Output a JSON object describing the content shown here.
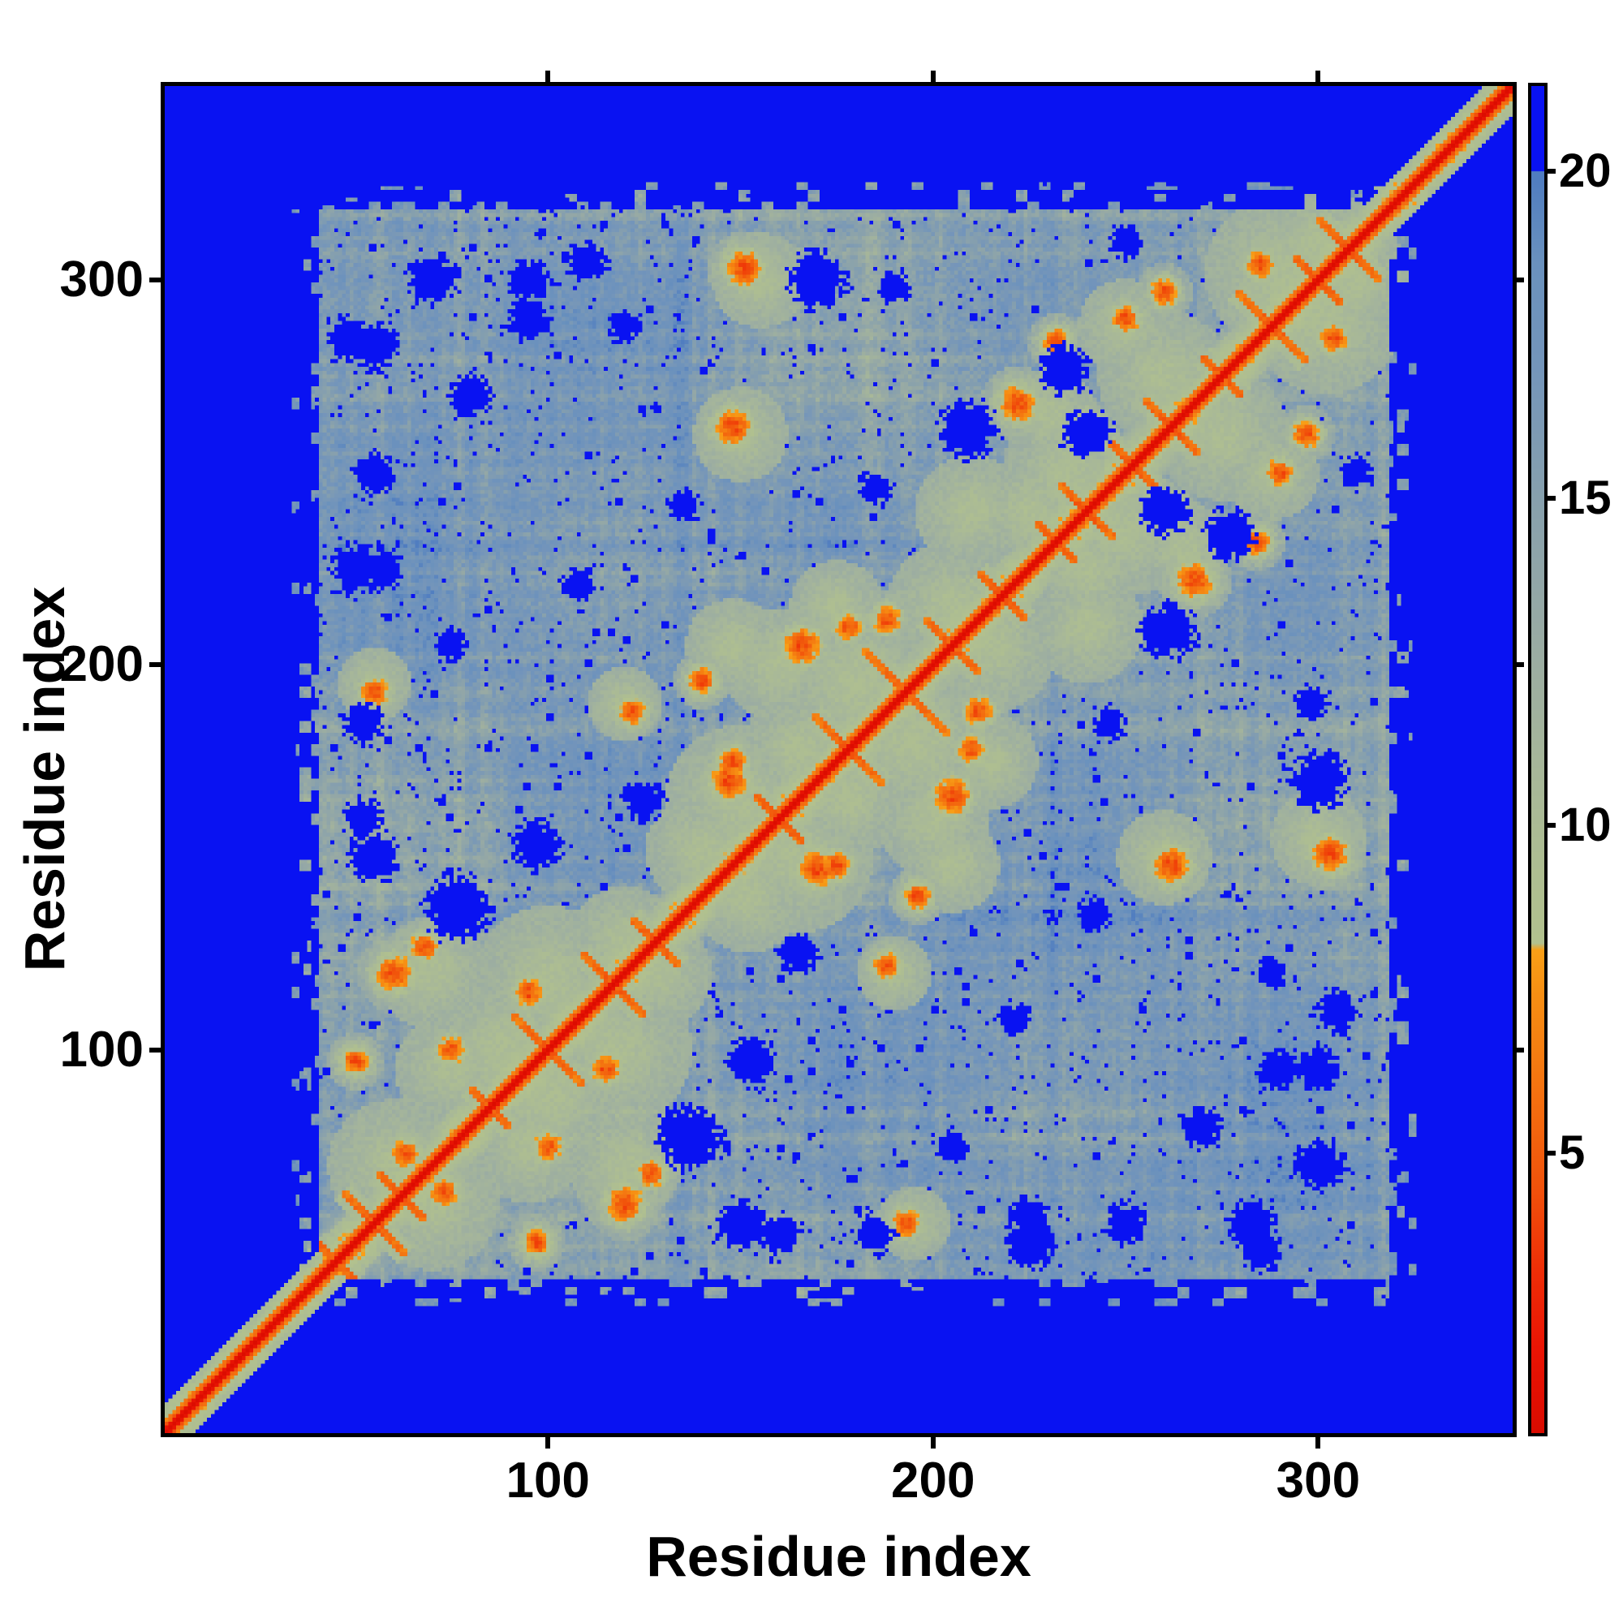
{
  "figure": {
    "x_axis_title": "Residue index",
    "y_axis_title": "Residue index"
  },
  "chart_data": {
    "type": "heatmap",
    "title": "",
    "xlabel": "Residue index",
    "ylabel": "Residue index",
    "x_ticks": [
      100,
      200,
      300
    ],
    "y_ticks": [
      100,
      200,
      300
    ],
    "x_tick_labels": [
      "100",
      "200",
      "300"
    ],
    "y_tick_labels": [
      "100",
      "200",
      "300"
    ],
    "axis_range": [
      1,
      350
    ],
    "n_residues": 350,
    "grid": false,
    "legend_position": "right-colorbar",
    "colorbar": {
      "ticks": [
        5,
        10,
        15,
        20
      ],
      "tick_labels": [
        "5",
        "10",
        "15",
        "20"
      ],
      "vmin": 0.72,
      "vmax": 21.3,
      "over_value_color": "#0912f2"
    },
    "colors": {
      "background_far": "#0912f2",
      "field_steel": "#6a91bd",
      "sage": "#adbd92",
      "orange": "#f68e13",
      "red_diagonal": "#ea1404",
      "frame": "#000000"
    },
    "colormap_stops": [
      [
        0.7,
        "#d90b00"
      ],
      [
        2.0,
        "#ea1404"
      ],
      [
        3.2,
        "#ee2e07"
      ],
      [
        4.5,
        "#f1530b"
      ],
      [
        6.0,
        "#f47310"
      ],
      [
        7.4,
        "#f68e13"
      ],
      [
        8.1,
        "#f89f17"
      ],
      [
        8.2,
        "#b2c18e"
      ],
      [
        9.5,
        "#adbd92"
      ],
      [
        11.0,
        "#a6b69a"
      ],
      [
        13.0,
        "#98aaa4"
      ],
      [
        15.0,
        "#87a0ad"
      ],
      [
        17.0,
        "#7495ba"
      ],
      [
        18.6,
        "#6a91bd"
      ],
      [
        19.9,
        "#507dc0"
      ]
    ],
    "blue_cutoff": 20.0,
    "pattern": {
      "base_distance": 17.4,
      "noise_amp": 2.6,
      "margin_low": 41,
      "margin_high": 318,
      "domains": [
        [
          42,
          130
        ],
        [
          130,
          230
        ],
        [
          230,
          318
        ]
      ],
      "hairpins": [
        [
          45,
          5
        ],
        [
          55,
          8
        ],
        [
          62,
          6
        ],
        [
          85,
          5
        ],
        [
          100,
          9
        ],
        [
          117,
          8
        ],
        [
          128,
          6
        ],
        [
          160,
          6
        ],
        [
          178,
          9
        ],
        [
          193,
          11
        ],
        [
          205,
          7
        ],
        [
          218,
          6
        ],
        [
          232,
          5
        ],
        [
          240,
          7
        ],
        [
          252,
          6
        ],
        [
          262,
          7
        ],
        [
          275,
          5
        ],
        [
          288,
          9
        ],
        [
          300,
          6
        ],
        [
          308,
          8
        ]
      ],
      "orange_clusters": [
        [
          60,
          120,
          4
        ],
        [
          68,
          127,
          3
        ],
        [
          50,
          97,
          3
        ],
        [
          73,
          63,
          3
        ],
        [
          100,
          75,
          3
        ],
        [
          115,
          95,
          3
        ],
        [
          55,
          193,
          3
        ],
        [
          122,
          188,
          3
        ],
        [
          140,
          196,
          3
        ],
        [
          147,
          170,
          4
        ],
        [
          166,
          205,
          4
        ],
        [
          188,
          212,
          3
        ],
        [
          222,
          268,
          4
        ],
        [
          232,
          284,
          3
        ],
        [
          240,
          262,
          3
        ],
        [
          250,
          290,
          3
        ],
        [
          262,
          148,
          4
        ],
        [
          303,
          151,
          4
        ],
        [
          297,
          260,
          3
        ],
        [
          285,
          304,
          3
        ],
        [
          210,
          178,
          3
        ],
        [
          175,
          148,
          3
        ]
      ],
      "sage_patches": [
        [
          100,
          118,
          8
        ],
        [
          60,
          70,
          7
        ],
        [
          88,
          100,
          8
        ],
        [
          120,
          128,
          6
        ],
        [
          150,
          165,
          8
        ],
        [
          180,
          195,
          9
        ],
        [
          205,
          215,
          7
        ],
        [
          235,
          250,
          7
        ],
        [
          260,
          275,
          7
        ],
        [
          290,
          302,
          8
        ],
        [
          225,
          240,
          6
        ],
        [
          165,
          178,
          6
        ],
        [
          140,
          152,
          6
        ],
        [
          310,
          300,
          6
        ],
        [
          70,
          120,
          6
        ],
        [
          95,
          75,
          6
        ],
        [
          250,
          288,
          5
        ],
        [
          230,
          265,
          5
        ],
        [
          148,
          205,
          5
        ],
        [
          175,
          215,
          5
        ],
        [
          260,
          150,
          5
        ],
        [
          300,
          155,
          5
        ],
        [
          55,
          195,
          4
        ],
        [
          120,
          190,
          4
        ],
        [
          200,
          160,
          6
        ],
        [
          240,
          210,
          6
        ]
      ],
      "blue_holes": [
        [
          77,
          137,
          8
        ],
        [
          97,
          153,
          6
        ],
        [
          170,
          300,
          7
        ],
        [
          209,
          261,
          7
        ],
        [
          260,
          240,
          6
        ],
        [
          234,
          277,
          6
        ],
        [
          75,
          205,
          4
        ],
        [
          108,
          221,
          4
        ],
        [
          125,
          165,
          5
        ],
        [
          185,
          246,
          4
        ],
        [
          150,
          55,
          6
        ],
        [
          185,
          52,
          5
        ],
        [
          225,
          57,
          5
        ],
        [
          283,
          55,
          6
        ],
        [
          52,
          160,
          5
        ],
        [
          50,
          225,
          6
        ],
        [
          55,
          250,
          5
        ],
        [
          48,
          285,
          5
        ],
        [
          300,
          95,
          5
        ],
        [
          288,
          120,
          4
        ],
        [
          298,
          190,
          4
        ],
        [
          135,
          242,
          4
        ],
        [
          70,
          300,
          6
        ],
        [
          95,
          290,
          5
        ],
        [
          80,
          270,
          5
        ],
        [
          110,
          305,
          5
        ],
        [
          250,
          310,
          4
        ]
      ]
    }
  }
}
